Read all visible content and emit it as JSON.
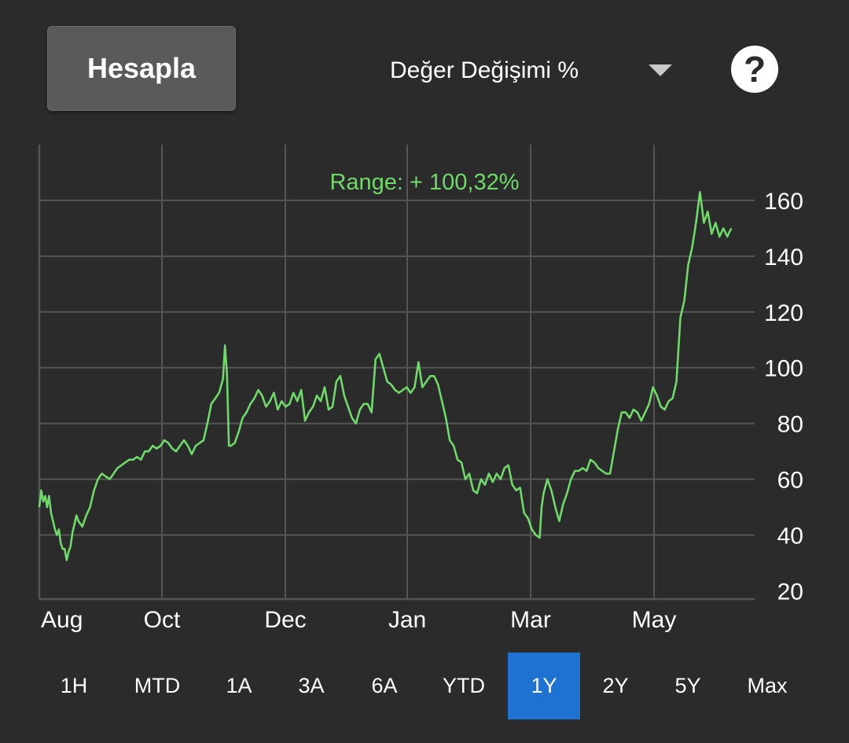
{
  "header": {
    "calculate_label": "Hesapla",
    "metric_select": {
      "value": "Değer Değişimi %"
    },
    "help_label": "?"
  },
  "colors": {
    "background": "#2b2b2b",
    "line": "#6fd96a",
    "grid": "#555555",
    "active_period": "#1e73d2"
  },
  "chart_data": {
    "type": "line",
    "annotation": "Range: + 100,32%",
    "x_ticks": [
      "Aug",
      "Oct",
      "Dec",
      "Jan",
      "Mar",
      "May"
    ],
    "y_ticks": [
      20,
      40,
      60,
      80,
      100,
      120,
      140,
      160
    ],
    "ylim": [
      17,
      180
    ],
    "y_axis_side": "right",
    "grid": true,
    "x_range": [
      0,
      366
    ],
    "series": [
      {
        "values": [
          [
            0,
            50
          ],
          [
            1,
            56
          ],
          [
            2,
            52
          ],
          [
            3,
            54
          ],
          [
            4,
            50
          ],
          [
            5,
            54
          ],
          [
            6,
            48
          ],
          [
            7,
            45
          ],
          [
            8,
            42
          ],
          [
            9,
            40
          ],
          [
            10,
            42
          ],
          [
            11,
            37
          ],
          [
            12,
            35
          ],
          [
            13,
            35
          ],
          [
            14,
            31
          ],
          [
            15,
            34
          ],
          [
            16,
            36
          ],
          [
            17,
            41
          ],
          [
            18,
            44
          ],
          [
            19,
            47
          ],
          [
            20,
            45
          ],
          [
            22,
            43
          ],
          [
            24,
            47
          ],
          [
            26,
            50
          ],
          [
            28,
            56
          ],
          [
            30,
            60
          ],
          [
            32,
            62
          ],
          [
            34,
            61
          ],
          [
            36,
            60
          ],
          [
            38,
            62
          ],
          [
            40,
            64
          ],
          [
            42,
            65
          ],
          [
            44,
            66
          ],
          [
            46,
            67
          ],
          [
            48,
            67
          ],
          [
            50,
            68
          ],
          [
            52,
            67
          ],
          [
            54,
            70
          ],
          [
            56,
            70
          ],
          [
            58,
            72
          ],
          [
            60,
            71
          ],
          [
            62,
            72
          ],
          [
            64,
            74
          ],
          [
            66,
            73
          ],
          [
            68,
            71
          ],
          [
            70,
            70
          ],
          [
            72,
            72
          ],
          [
            74,
            74
          ],
          [
            76,
            72
          ],
          [
            78,
            69
          ],
          [
            80,
            72
          ],
          [
            84,
            74
          ],
          [
            86,
            80
          ],
          [
            88,
            87
          ],
          [
            90,
            89
          ],
          [
            92,
            91
          ],
          [
            94,
            96
          ],
          [
            95,
            108
          ],
          [
            96,
            98
          ],
          [
            97,
            72
          ],
          [
            98,
            72
          ],
          [
            100,
            73
          ],
          [
            102,
            77
          ],
          [
            104,
            82
          ],
          [
            106,
            84
          ],
          [
            108,
            87
          ],
          [
            110,
            89
          ],
          [
            112,
            92
          ],
          [
            114,
            90
          ],
          [
            116,
            86
          ],
          [
            118,
            88
          ],
          [
            120,
            91
          ],
          [
            122,
            85
          ],
          [
            124,
            88
          ],
          [
            126,
            86
          ],
          [
            128,
            87
          ],
          [
            130,
            91
          ],
          [
            132,
            88
          ],
          [
            134,
            92
          ],
          [
            136,
            81
          ],
          [
            138,
            84
          ],
          [
            140,
            86
          ],
          [
            142,
            90
          ],
          [
            144,
            88
          ],
          [
            146,
            93
          ],
          [
            148,
            85
          ],
          [
            150,
            86
          ],
          [
            152,
            95
          ],
          [
            154,
            97
          ],
          [
            156,
            90
          ],
          [
            158,
            86
          ],
          [
            160,
            82
          ],
          [
            162,
            80
          ],
          [
            164,
            85
          ],
          [
            166,
            87
          ],
          [
            168,
            87
          ],
          [
            170,
            84
          ],
          [
            172,
            103
          ],
          [
            174,
            105
          ],
          [
            176,
            100
          ],
          [
            178,
            95
          ],
          [
            180,
            94
          ],
          [
            182,
            92
          ],
          [
            184,
            91
          ],
          [
            186,
            92
          ],
          [
            188,
            93
          ],
          [
            190,
            91
          ],
          [
            192,
            93
          ],
          [
            194,
            102
          ],
          [
            196,
            93
          ],
          [
            198,
            95
          ],
          [
            200,
            97
          ],
          [
            202,
            97
          ],
          [
            204,
            94
          ],
          [
            206,
            88
          ],
          [
            208,
            82
          ],
          [
            210,
            74
          ],
          [
            212,
            72
          ],
          [
            214,
            67
          ],
          [
            216,
            66
          ],
          [
            218,
            60
          ],
          [
            220,
            62
          ],
          [
            222,
            56
          ],
          [
            224,
            55
          ],
          [
            226,
            60
          ],
          [
            228,
            58
          ],
          [
            230,
            62
          ],
          [
            232,
            59
          ],
          [
            234,
            62
          ],
          [
            236,
            60
          ],
          [
            238,
            64
          ],
          [
            240,
            65
          ],
          [
            242,
            58
          ],
          [
            244,
            56
          ],
          [
            246,
            57
          ],
          [
            248,
            48
          ],
          [
            250,
            46
          ],
          [
            252,
            42
          ],
          [
            254,
            40
          ],
          [
            256,
            39
          ],
          [
            257,
            50
          ],
          [
            258,
            55
          ],
          [
            260,
            60
          ],
          [
            262,
            56
          ],
          [
            264,
            50
          ],
          [
            266,
            45
          ],
          [
            268,
            51
          ],
          [
            270,
            55
          ],
          [
            272,
            60
          ],
          [
            274,
            63
          ],
          [
            276,
            63
          ],
          [
            278,
            64
          ],
          [
            280,
            63
          ],
          [
            282,
            67
          ],
          [
            284,
            66
          ],
          [
            286,
            64
          ],
          [
            288,
            63
          ],
          [
            290,
            62
          ],
          [
            292,
            62
          ],
          [
            294,
            70
          ],
          [
            296,
            78
          ],
          [
            298,
            84
          ],
          [
            300,
            84
          ],
          [
            302,
            82
          ],
          [
            304,
            85
          ],
          [
            306,
            84
          ],
          [
            308,
            81
          ],
          [
            310,
            84
          ],
          [
            312,
            87
          ],
          [
            314,
            93
          ],
          [
            316,
            90
          ],
          [
            318,
            86
          ],
          [
            320,
            85
          ],
          [
            322,
            88
          ],
          [
            324,
            89
          ],
          [
            326,
            95
          ],
          [
            328,
            118
          ],
          [
            330,
            124
          ],
          [
            332,
            137
          ],
          [
            334,
            143
          ],
          [
            336,
            152
          ],
          [
            338,
            163
          ],
          [
            340,
            152
          ],
          [
            342,
            156
          ],
          [
            344,
            148
          ],
          [
            346,
            152
          ],
          [
            348,
            147
          ],
          [
            350,
            150
          ],
          [
            352,
            147
          ],
          [
            354,
            150
          ]
        ]
      }
    ]
  },
  "periods": [
    {
      "label": "1H",
      "active": false
    },
    {
      "label": "MTD",
      "active": false
    },
    {
      "label": "1A",
      "active": false
    },
    {
      "label": "3A",
      "active": false
    },
    {
      "label": "6A",
      "active": false
    },
    {
      "label": "YTD",
      "active": false
    },
    {
      "label": "1Y",
      "active": true
    },
    {
      "label": "2Y",
      "active": false
    },
    {
      "label": "5Y",
      "active": false
    },
    {
      "label": "Max",
      "active": false
    }
  ]
}
